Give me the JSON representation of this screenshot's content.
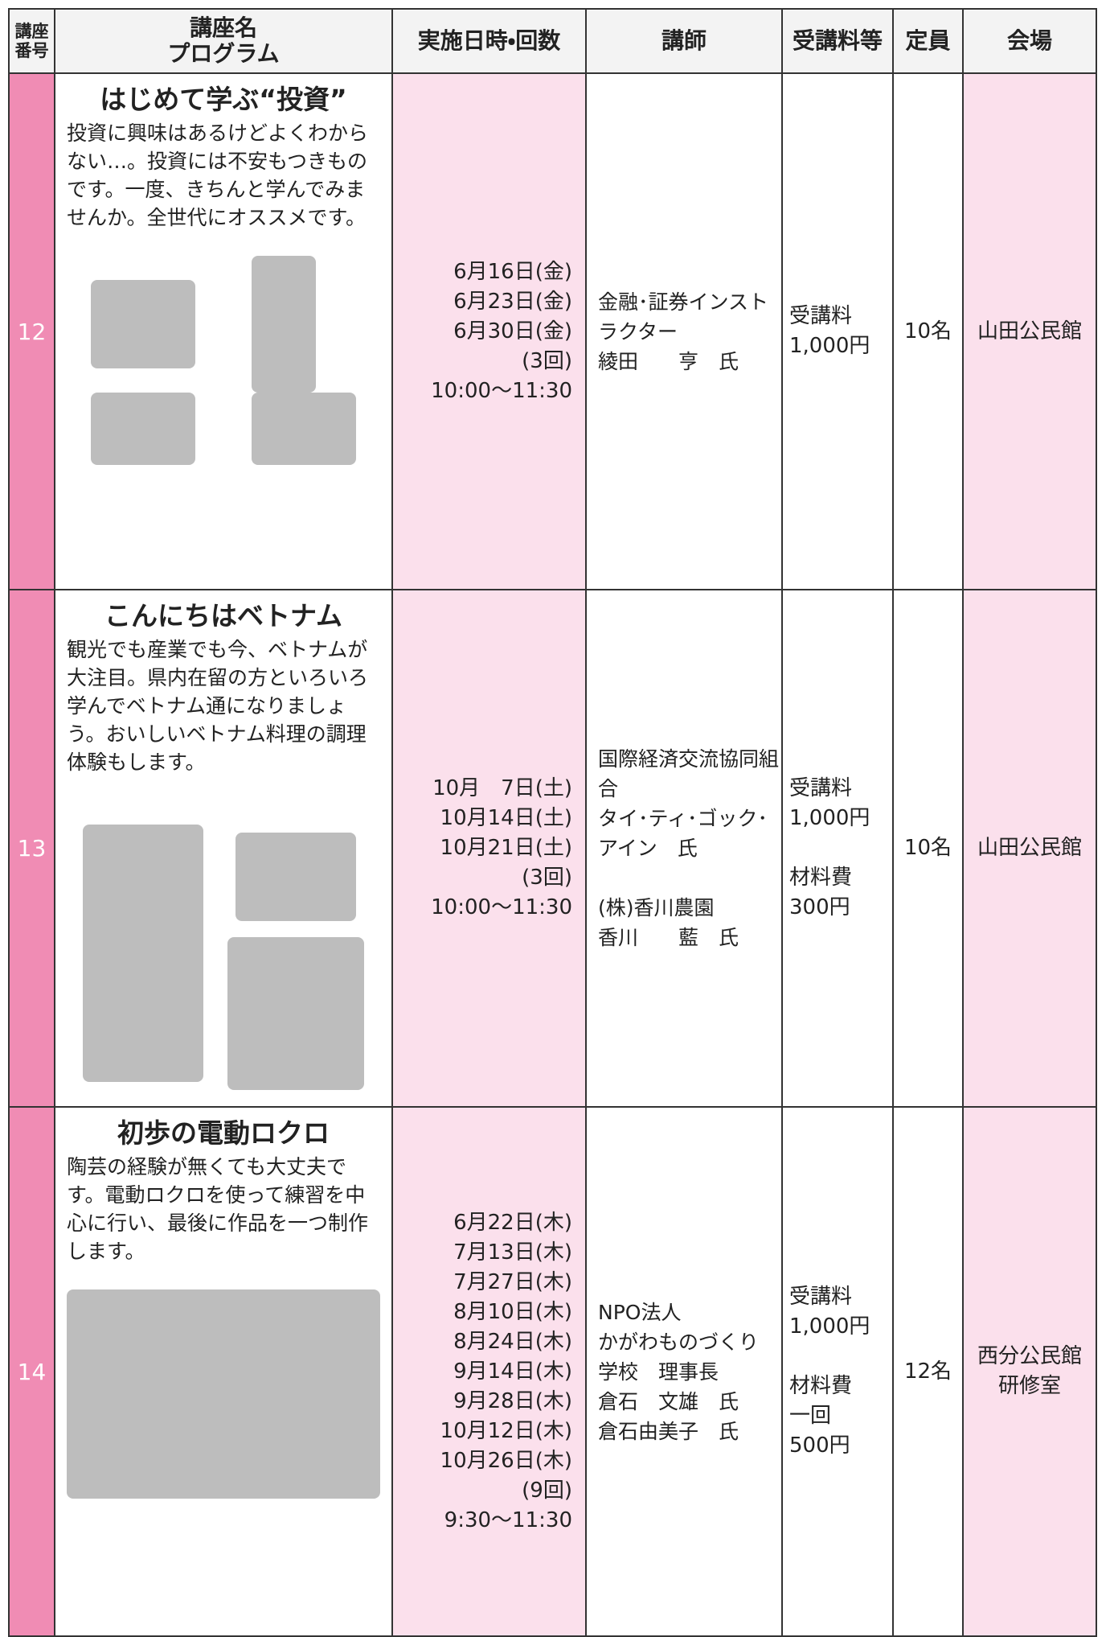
{
  "table": {
    "headers": [
      [
        "講座",
        "番号"
      ],
      [
        "講座名",
        "プログラム"
      ],
      [
        "実施日時・回数"
      ],
      [
        "講師"
      ],
      [
        "受講料等"
      ],
      [
        "定員"
      ],
      [
        "会場"
      ]
    ],
    "rows": [
      {
        "number": "12",
        "title": "はじめて学ぶ“投資”",
        "description": "投資に興味はあるけどよくわからない…。投資には不安もつきものです。一度、きちんと学んでみませんか。全世代にオススメです。",
        "dates": [
          "6月16日(金)",
          "6月23日(金)",
          "6月30日(金)",
          "(3回)",
          "10:00〜11:30"
        ],
        "instructor": [
          [
            "金融･証券インスト",
            "ラクター",
            "綾田　　亨　氏"
          ]
        ],
        "fee": [
          [
            "受講料",
            "1,000円"
          ]
        ],
        "capacity": "10名",
        "venue": [
          "山田公民館"
        ]
      },
      {
        "number": "13",
        "title": "こんにちはベトナム",
        "description": "観光でも産業でも今、ベトナムが大注目。県内在留の方といろいろ学んでベトナム通になりましょう。おいしいベトナム料理の調理体験もします。",
        "dates": [
          "10月　7日(土)",
          "10月14日(土)",
          "10月21日(土)",
          "(3回)",
          "10:00〜11:30"
        ],
        "instructor": [
          [
            "国際経済交流協同組合",
            "タイ･ティ･ゴック･アイン　氏"
          ],
          [
            "(株)香川農園",
            "香川　　藍　氏"
          ]
        ],
        "fee": [
          [
            "受講料",
            "1,000円"
          ],
          [
            "材料費",
            "300円"
          ]
        ],
        "capacity": "10名",
        "venue": [
          "山田公民館"
        ]
      },
      {
        "number": "14",
        "title": "初歩の電動ロクロ",
        "description": "陶芸の経験が無くても大丈夫です。電動ロクロを使って練習を中心に行い、最後に作品を一つ制作します。",
        "dates": [
          "6月22日(木)",
          "7月13日(木)",
          "7月27日(木)",
          "8月10日(木)",
          "8月24日(木)",
          "9月14日(木)",
          "9月28日(木)",
          "10月12日(木)",
          "10月26日(木)",
          "(9回)",
          "9:30〜11:30"
        ],
        "instructor": [
          [
            "NPO法人",
            "かがわものづくり",
            "学校　理事長",
            "倉石　文雄　氏",
            "倉石由美子　氏"
          ]
        ],
        "fee": [
          [
            "受講料",
            "1,000円"
          ],
          [
            "材料費",
            "一回",
            "500円"
          ]
        ],
        "capacity": "12名",
        "venue": [
          "西分公民館",
          "研修室"
        ]
      }
    ]
  }
}
